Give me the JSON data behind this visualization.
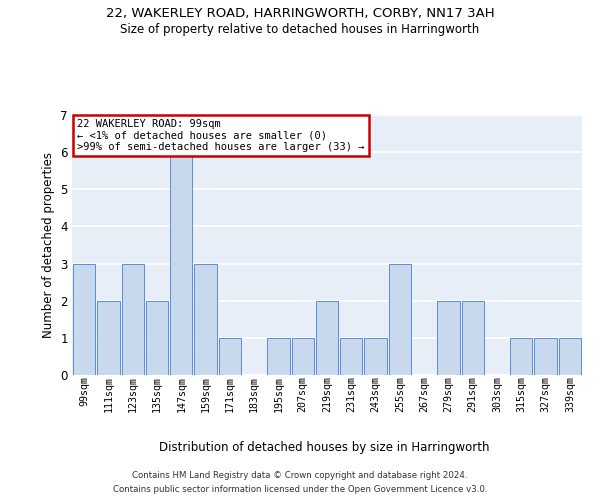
{
  "title1": "22, WAKERLEY ROAD, HARRINGWORTH, CORBY, NN17 3AH",
  "title2": "Size of property relative to detached houses in Harringworth",
  "xlabel": "Distribution of detached houses by size in Harringworth",
  "ylabel": "Number of detached properties",
  "footer1": "Contains HM Land Registry data © Crown copyright and database right 2024.",
  "footer2": "Contains public sector information licensed under the Open Government Licence v3.0.",
  "annotation_line1": "22 WAKERLEY ROAD: 99sqm",
  "annotation_line2": "← <1% of detached houses are smaller (0)",
  "annotation_line3": ">99% of semi-detached houses are larger (33) →",
  "categories": [
    "99sqm",
    "111sqm",
    "123sqm",
    "135sqm",
    "147sqm",
    "159sqm",
    "171sqm",
    "183sqm",
    "195sqm",
    "207sqm",
    "219sqm",
    "231sqm",
    "243sqm",
    "255sqm",
    "267sqm",
    "279sqm",
    "291sqm",
    "303sqm",
    "315sqm",
    "327sqm",
    "339sqm"
  ],
  "values": [
    3,
    2,
    3,
    2,
    6,
    3,
    1,
    0,
    1,
    1,
    2,
    1,
    1,
    3,
    0,
    2,
    2,
    0,
    1,
    1,
    1
  ],
  "bar_color": "#c8d9ee",
  "bar_edge_color": "#5b8ed6",
  "annotation_box_color": "#ffffff",
  "annotation_box_edge": "#cc0000",
  "bg_color": "#ffffff",
  "plot_bg_color": "#e8eef8",
  "grid_color": "#ffffff",
  "ylim": [
    0,
    7
  ],
  "yticks": [
    0,
    1,
    2,
    3,
    4,
    5,
    6,
    7
  ]
}
